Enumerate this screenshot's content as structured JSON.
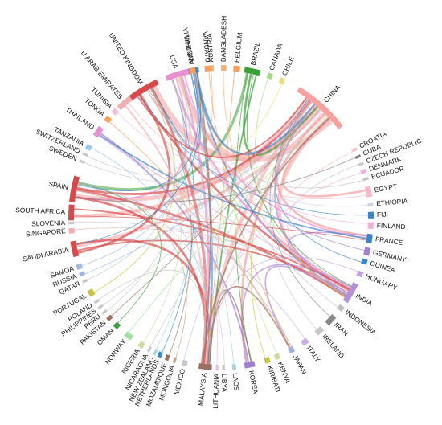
{
  "diagram": {
    "type": "chord",
    "nodes": [
      {
        "name": "AUSTRALIA",
        "color": "#3a86c8"
      },
      {
        "name": "AUSTRIA",
        "color": "#f6b07e"
      },
      {
        "name": "BANGLADESH",
        "color": "#f6b07e"
      },
      {
        "name": "BELGIUM",
        "color": "#f6a05a"
      },
      {
        "name": "BRAZIL",
        "color": "#3aa03a"
      },
      {
        "name": "CANADA",
        "color": "#a6d88a"
      },
      {
        "name": "CHILE",
        "color": "#e8e07a"
      },
      {
        "name": "CHINA",
        "color": "#f7a0a0"
      },
      {
        "name": "CROATIA",
        "color": "#f7c0c0"
      },
      {
        "name": "CUBA",
        "color": "#777777"
      },
      {
        "name": "CZECH REPUBLIC",
        "color": "#c8c8c8"
      },
      {
        "name": "DENMARK",
        "color": "#f0b0d8"
      },
      {
        "name": "ECUADOR",
        "color": "#c0c0c0"
      },
      {
        "name": "EGYPT",
        "color": "#f7b8c8"
      },
      {
        "name": "ETHIOPIA",
        "color": "#c8d0e0"
      },
      {
        "name": "FIJI",
        "color": "#3a86c8"
      },
      {
        "name": "FINLAND",
        "color": "#f0b0d8"
      },
      {
        "name": "FRANCE",
        "color": "#3a86c8"
      },
      {
        "name": "GERMANY",
        "color": "#9f7fcf"
      },
      {
        "name": "GUINEA",
        "color": "#3a86c8"
      },
      {
        "name": "HUNGARY",
        "color": "#c0a0e0"
      },
      {
        "name": "INDIA",
        "color": "#b090d8"
      },
      {
        "name": "INDONESIA",
        "color": "#c0c0c0"
      },
      {
        "name": "IRAN",
        "color": "#888888"
      },
      {
        "name": "IRELAND",
        "color": "#c8c8c8"
      },
      {
        "name": "ITALY",
        "color": "#c8b0e0"
      },
      {
        "name": "JAPAN",
        "color": "#9fb0e0"
      },
      {
        "name": "KENYA",
        "color": "#d0d8a0"
      },
      {
        "name": "KIRIBATI",
        "color": "#c8c040"
      },
      {
        "name": "KOREA",
        "color": "#9f7fcf"
      },
      {
        "name": "LAOS",
        "color": "#9fd8d8"
      },
      {
        "name": "LIBYA",
        "color": "#c8c8c8"
      },
      {
        "name": "LITHUANIA",
        "color": "#e0c0e0"
      },
      {
        "name": "MALAYSIA",
        "color": "#9a7060"
      },
      {
        "name": "MEXICO",
        "color": "#c8c8c8"
      },
      {
        "name": "MONGOLIA",
        "color": "#c8a080"
      },
      {
        "name": "MOZAMBIQUE",
        "color": "#9a7060"
      },
      {
        "name": "NETHERLANDS",
        "color": "#3a86c8"
      },
      {
        "name": "NEW ZEALAND",
        "color": "#9fd8e8"
      },
      {
        "name": "NICARAGUA",
        "color": "#c8c8c8"
      },
      {
        "name": "NIGERIA",
        "color": "#d0d8a0"
      },
      {
        "name": "NORWAY",
        "color": "#a0e0a0"
      },
      {
        "name": "OMAN",
        "color": "#3aa03a"
      },
      {
        "name": "PAKISTAN",
        "color": "#9a7060"
      },
      {
        "name": "PERU",
        "color": "#c8c8c8"
      },
      {
        "name": "PHILIPPINES",
        "color": "#c8c8c8"
      },
      {
        "name": "POLAND",
        "color": "#c8c8c8"
      },
      {
        "name": "PORTUGAL",
        "color": "#c8c040"
      },
      {
        "name": "QATAR",
        "color": "#c8c8c8"
      },
      {
        "name": "RUSSIA",
        "color": "#a0b8e0"
      },
      {
        "name": "SAMOA",
        "color": "#a0b8e0"
      },
      {
        "name": "SAUDI ARABIA",
        "color": "#d84a4a"
      },
      {
        "name": "SINGAPORE",
        "color": "#f0b0b0"
      },
      {
        "name": "SLOVENIA",
        "color": "#c8c8c8"
      },
      {
        "name": "SOUTH AFRICA",
        "color": "#d84a4a"
      },
      {
        "name": "SPAIN",
        "color": "#d84a4a"
      },
      {
        "name": "SWEDEN",
        "color": "#c8c8c8"
      },
      {
        "name": "SWITZERLAND",
        "color": "#c8c8c8"
      },
      {
        "name": "TANZANIA",
        "color": "#a0c8e8"
      },
      {
        "name": "THAILAND",
        "color": "#e890d0"
      },
      {
        "name": "TONGA",
        "color": "#f6a05a"
      },
      {
        "name": "TUNISIA",
        "color": "#f7c0d8"
      },
      {
        "name": "U ARAB EMIRATES",
        "color": "#f0b0b0"
      },
      {
        "name": "UNITED KINGDOM",
        "color": "#d84a4a"
      },
      {
        "name": "USA",
        "color": "#e890d0"
      },
      {
        "name": "VANUATU",
        "color": "#f6a05a"
      },
      {
        "name": "VIETNAM",
        "color": "#f6a05a"
      }
    ]
  }
}
